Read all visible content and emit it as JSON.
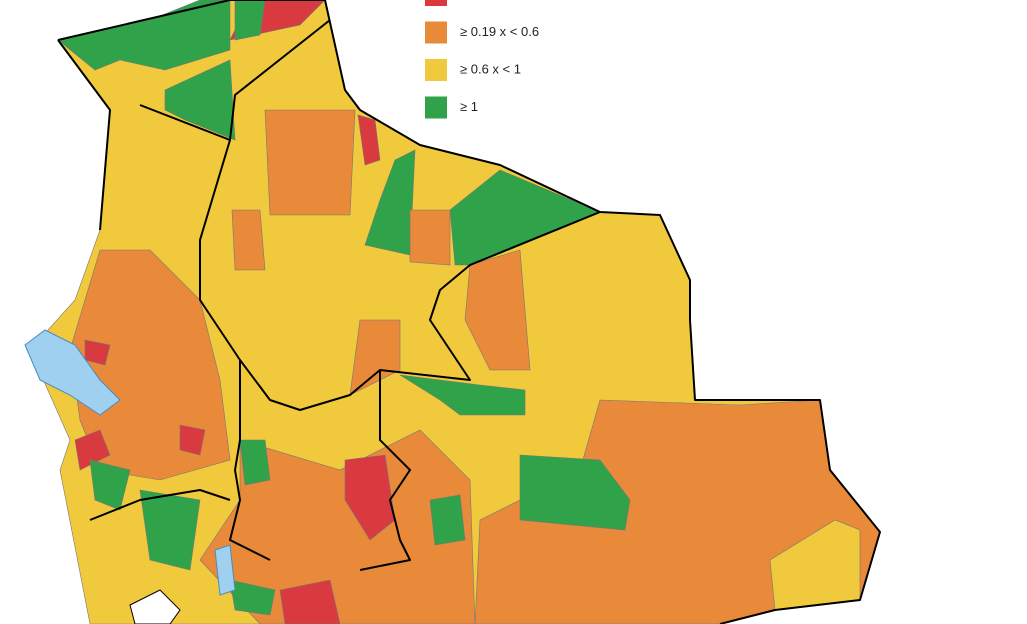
{
  "legend": {
    "items": [
      {
        "color": "#d93a3f"
      },
      {
        "label": "≥ 0.19 x < 0.6",
        "color": "#e88a3a"
      },
      {
        "label": "≥ 0.6 x < 1",
        "color": "#f0c93c"
      },
      {
        "label": "≥ 1",
        "color": "#2fa24a"
      }
    ]
  }
}
